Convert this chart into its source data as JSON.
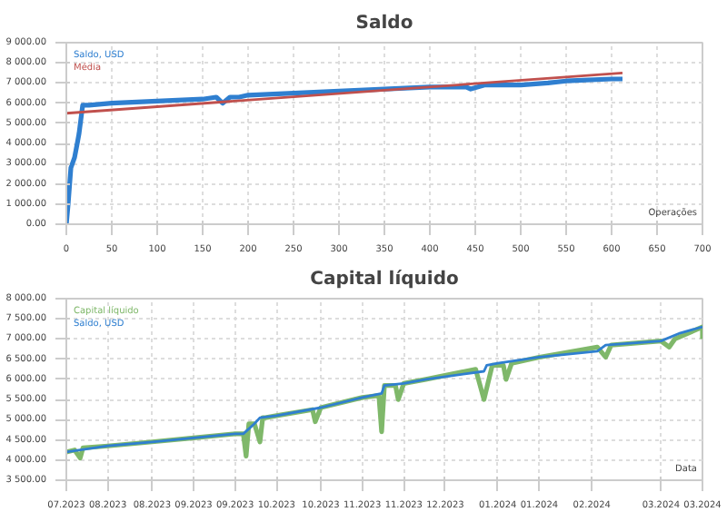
{
  "chart_data": [
    {
      "type": "line",
      "title": "Saldo",
      "xlabel": "Operações",
      "xlim": [
        0,
        700
      ],
      "xticks": [
        0,
        50,
        100,
        150,
        200,
        250,
        300,
        350,
        400,
        450,
        500,
        550,
        600,
        650,
        700
      ],
      "ylim": [
        0,
        9000
      ],
      "yticks": [
        {
          "value": 0,
          "label": "0.00"
        },
        {
          "value": 1000,
          "label": "1 000.00"
        },
        {
          "value": 2000,
          "label": "2 000.00"
        },
        {
          "value": 3000,
          "label": "3 000.00"
        },
        {
          "value": 4000,
          "label": "4 000.00"
        },
        {
          "value": 5000,
          "label": "5 000.00"
        },
        {
          "value": 6000,
          "label": "6 000.00"
        },
        {
          "value": 7000,
          "label": "7 000.00"
        },
        {
          "value": 8000,
          "label": "8 000.00"
        },
        {
          "value": 9000,
          "label": "9 000.00"
        }
      ],
      "grid": true,
      "legend": "top left",
      "series": [
        {
          "name": "Saldo, USD",
          "color": "#2f7fd0",
          "x": [
            0,
            2,
            5,
            9,
            12,
            14,
            16,
            18,
            25,
            50,
            100,
            150,
            165,
            172,
            180,
            190,
            200,
            250,
            300,
            350,
            400,
            440,
            445,
            460,
            500,
            530,
            550,
            600,
            612
          ],
          "values": [
            0,
            1000,
            2800,
            3300,
            4000,
            4500,
            5200,
            5900,
            5900,
            6000,
            6100,
            6200,
            6300,
            6000,
            6300,
            6300,
            6400,
            6500,
            6600,
            6700,
            6800,
            6800,
            6700,
            6900,
            6900,
            7000,
            7100,
            7200,
            7200
          ]
        },
        {
          "name": "Média",
          "color": "#c0504d",
          "x": [
            0,
            612
          ],
          "values": [
            5500,
            7500
          ]
        }
      ]
    },
    {
      "type": "line",
      "title": "Capital líquido",
      "xlabel": "Data",
      "xlim": [
        "2023-07-30",
        "2024-03-16"
      ],
      "xticks": [
        {
          "value": "2023-07-30",
          "label": "07.2023"
        },
        {
          "value": "2023-08-14",
          "label": "08.2023"
        },
        {
          "value": "2023-08-30",
          "label": "08.2023"
        },
        {
          "value": "2023-09-14",
          "label": "09.2023"
        },
        {
          "value": "2023-09-29",
          "label": "09.2023"
        },
        {
          "value": "2023-10-14",
          "label": "10.2023"
        },
        {
          "value": "2023-10-30",
          "label": "10.2023"
        },
        {
          "value": "2023-11-14",
          "label": "11.2023"
        },
        {
          "value": "2023-11-29",
          "label": "11.2023"
        },
        {
          "value": "2023-12-14",
          "label": "12.2023"
        },
        {
          "value": "2024-01-02",
          "label": "01.2024"
        },
        {
          "value": "2024-01-17",
          "label": "01.2024"
        },
        {
          "value": "2024-02-05",
          "label": "02.2024"
        },
        {
          "value": "2024-03-01",
          "label": "03.2024"
        },
        {
          "value": "2024-03-16",
          "label": "03.2024"
        }
      ],
      "ylim": [
        3500,
        8000
      ],
      "yticks": [
        {
          "value": 3500,
          "label": "3 500.00"
        },
        {
          "value": 4000,
          "label": "4 000.00"
        },
        {
          "value": 4500,
          "label": "4 500.00"
        },
        {
          "value": 5000,
          "label": "5 000.00"
        },
        {
          "value": 5500,
          "label": "5 500.00"
        },
        {
          "value": 6000,
          "label": "6 000.00"
        },
        {
          "value": 6500,
          "label": "6 500.00"
        },
        {
          "value": 7000,
          "label": "7 000.00"
        },
        {
          "value": 7500,
          "label": "7 500.00"
        },
        {
          "value": 8000,
          "label": "8 000.00"
        }
      ],
      "grid": true,
      "legend": "top left",
      "series": [
        {
          "name": "Capital líquido",
          "color": "#7fb86a",
          "x": [
            "2023-07-30",
            "2023-08-02",
            "2023-08-04",
            "2023-08-05",
            "2023-08-14",
            "2023-08-30",
            "2023-09-14",
            "2023-09-29",
            "2023-10-02",
            "2023-10-03",
            "2023-10-04",
            "2023-10-06",
            "2023-10-08",
            "2023-10-09",
            "2023-10-10",
            "2023-10-14",
            "2023-10-27",
            "2023-10-28",
            "2023-10-30",
            "2023-11-14",
            "2023-11-20",
            "2023-11-21",
            "2023-11-22",
            "2023-11-26",
            "2023-11-27",
            "2023-11-29",
            "2023-12-07",
            "2023-12-25",
            "2023-12-28",
            "2023-12-31",
            "2024-01-04",
            "2024-01-05",
            "2024-01-07",
            "2024-01-17",
            "2024-02-07",
            "2024-02-10",
            "2024-02-12",
            "2024-03-01",
            "2024-03-04",
            "2024-03-06",
            "2024-03-16",
            "2024-03-16"
          ],
          "values": [
            4200,
            4250,
            4050,
            4300,
            4350,
            4450,
            4550,
            4650,
            4650,
            4100,
            4900,
            4900,
            4450,
            5050,
            5050,
            5100,
            5250,
            4950,
            5300,
            5550,
            5600,
            4700,
            5850,
            5850,
            5500,
            5900,
            6000,
            6250,
            5500,
            6350,
            6350,
            6000,
            6400,
            6550,
            6800,
            6550,
            6850,
            6950,
            6800,
            7000,
            7300,
            7000
          ]
        },
        {
          "name": "Saldo, USD",
          "color": "#2f7fd0",
          "x": [
            "2023-07-30",
            "2023-08-14",
            "2023-08-30",
            "2023-09-14",
            "2023-09-29",
            "2023-10-02",
            "2023-10-06",
            "2023-10-08",
            "2023-10-14",
            "2023-10-30",
            "2023-11-14",
            "2023-11-21",
            "2023-11-22",
            "2023-11-29",
            "2023-12-07",
            "2023-12-28",
            "2023-12-29",
            "2024-01-02",
            "2024-01-17",
            "2024-02-07",
            "2024-02-10",
            "2024-03-01",
            "2024-03-08",
            "2024-03-16"
          ],
          "values": [
            4200,
            4350,
            4450,
            4550,
            4650,
            4650,
            4900,
            5050,
            5100,
            5300,
            5550,
            5650,
            5850,
            5900,
            6000,
            6200,
            6350,
            6400,
            6550,
            6700,
            6850,
            6950,
            7150,
            7300
          ]
        }
      ]
    }
  ]
}
